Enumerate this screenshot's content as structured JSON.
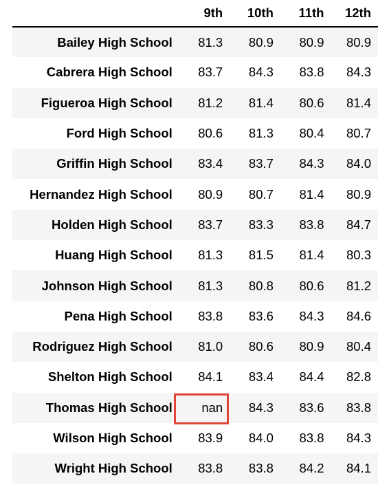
{
  "table": {
    "columns": [
      "9th",
      "10th",
      "11th",
      "12th"
    ],
    "rows": [
      {
        "school": "Bailey High School",
        "values": [
          "81.3",
          "80.9",
          "80.9",
          "80.9"
        ]
      },
      {
        "school": "Cabrera High School",
        "values": [
          "83.7",
          "84.3",
          "83.8",
          "84.3"
        ]
      },
      {
        "school": "Figueroa High School",
        "values": [
          "81.2",
          "81.4",
          "80.6",
          "81.4"
        ]
      },
      {
        "school": "Ford High School",
        "values": [
          "80.6",
          "81.3",
          "80.4",
          "80.7"
        ]
      },
      {
        "school": "Griffin High School",
        "values": [
          "83.4",
          "83.7",
          "84.3",
          "84.0"
        ]
      },
      {
        "school": "Hernandez High School",
        "values": [
          "80.9",
          "80.7",
          "81.4",
          "80.9"
        ]
      },
      {
        "school": "Holden High School",
        "values": [
          "83.7",
          "83.3",
          "83.8",
          "84.7"
        ]
      },
      {
        "school": "Huang High School",
        "values": [
          "81.3",
          "81.5",
          "81.4",
          "80.3"
        ]
      },
      {
        "school": "Johnson High School",
        "values": [
          "81.3",
          "80.8",
          "80.6",
          "81.2"
        ]
      },
      {
        "school": "Pena High School",
        "values": [
          "83.8",
          "83.6",
          "84.3",
          "84.6"
        ]
      },
      {
        "school": "Rodriguez High School",
        "values": [
          "81.0",
          "80.6",
          "80.9",
          "80.4"
        ]
      },
      {
        "school": "Shelton High School",
        "values": [
          "84.1",
          "83.4",
          "84.4",
          "82.8"
        ]
      },
      {
        "school": "Thomas High School",
        "values": [
          "nan",
          "84.3",
          "83.6",
          "83.8"
        ]
      },
      {
        "school": "Wilson High School",
        "values": [
          "83.9",
          "84.0",
          "83.8",
          "84.3"
        ]
      },
      {
        "school": "Wright High School",
        "values": [
          "83.8",
          "83.8",
          "84.2",
          "84.1"
        ]
      }
    ]
  },
  "highlight": {
    "row_school": "Thomas High School",
    "column": "9th",
    "color": "#e0453a"
  }
}
